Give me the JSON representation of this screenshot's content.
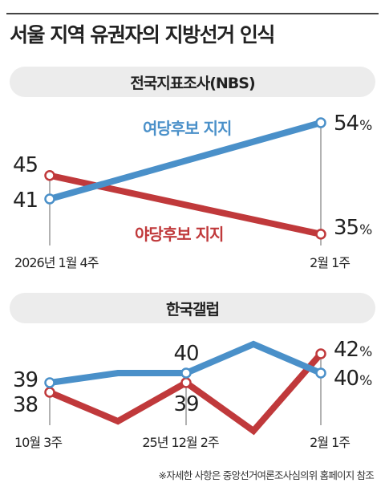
{
  "title": "서울 지역 유권자의 지방선거 인식",
  "footnote": "※자세한 사항은 중앙선거여론조사심의위 홈페이지 참조",
  "colors": {
    "ruling": "#4a90c9",
    "opposition": "#c0393b",
    "gridline": "#666666"
  },
  "chart_data": [
    {
      "type": "line",
      "title": "전국지표조사(NBS)",
      "x": [
        "2026년 1월 4주",
        "2월 1주"
      ],
      "series": [
        {
          "name": "여당후보 지지",
          "values": [
            41,
            54
          ],
          "color": "#4a90c9"
        },
        {
          "name": "야당후보 지지",
          "values": [
            45,
            35
          ],
          "color": "#c0393b"
        }
      ],
      "value_labels": {
        "여당후보 지지": [
          "41",
          "54"
        ],
        "야당후보 지지": [
          "45",
          "35"
        ]
      },
      "unit": "%",
      "legend": "inline"
    },
    {
      "type": "line",
      "title": "한국갤럽",
      "x": [
        "10월 3주",
        "",
        "25년 12월 2주",
        "",
        "",
        "2월 1주"
      ],
      "x_tick_labels": [
        "10월 3주",
        "25년 12월 2주",
        "2월 1주"
      ],
      "series": [
        {
          "name": "여당후보 지지",
          "values": [
            39,
            40,
            40,
            43,
            40,
            40
          ],
          "color": "#4a90c9"
        },
        {
          "name": "야당후보 지지",
          "values": [
            38,
            35,
            39,
            34,
            34,
            42
          ],
          "color": "#c0393b"
        }
      ],
      "value_labels": {
        "여당후보 지지": [
          "39",
          null,
          "40",
          null,
          null,
          "40"
        ],
        "야당후보 지지": [
          "38",
          null,
          "39",
          null,
          null,
          "42"
        ]
      },
      "unit": "%"
    }
  ]
}
